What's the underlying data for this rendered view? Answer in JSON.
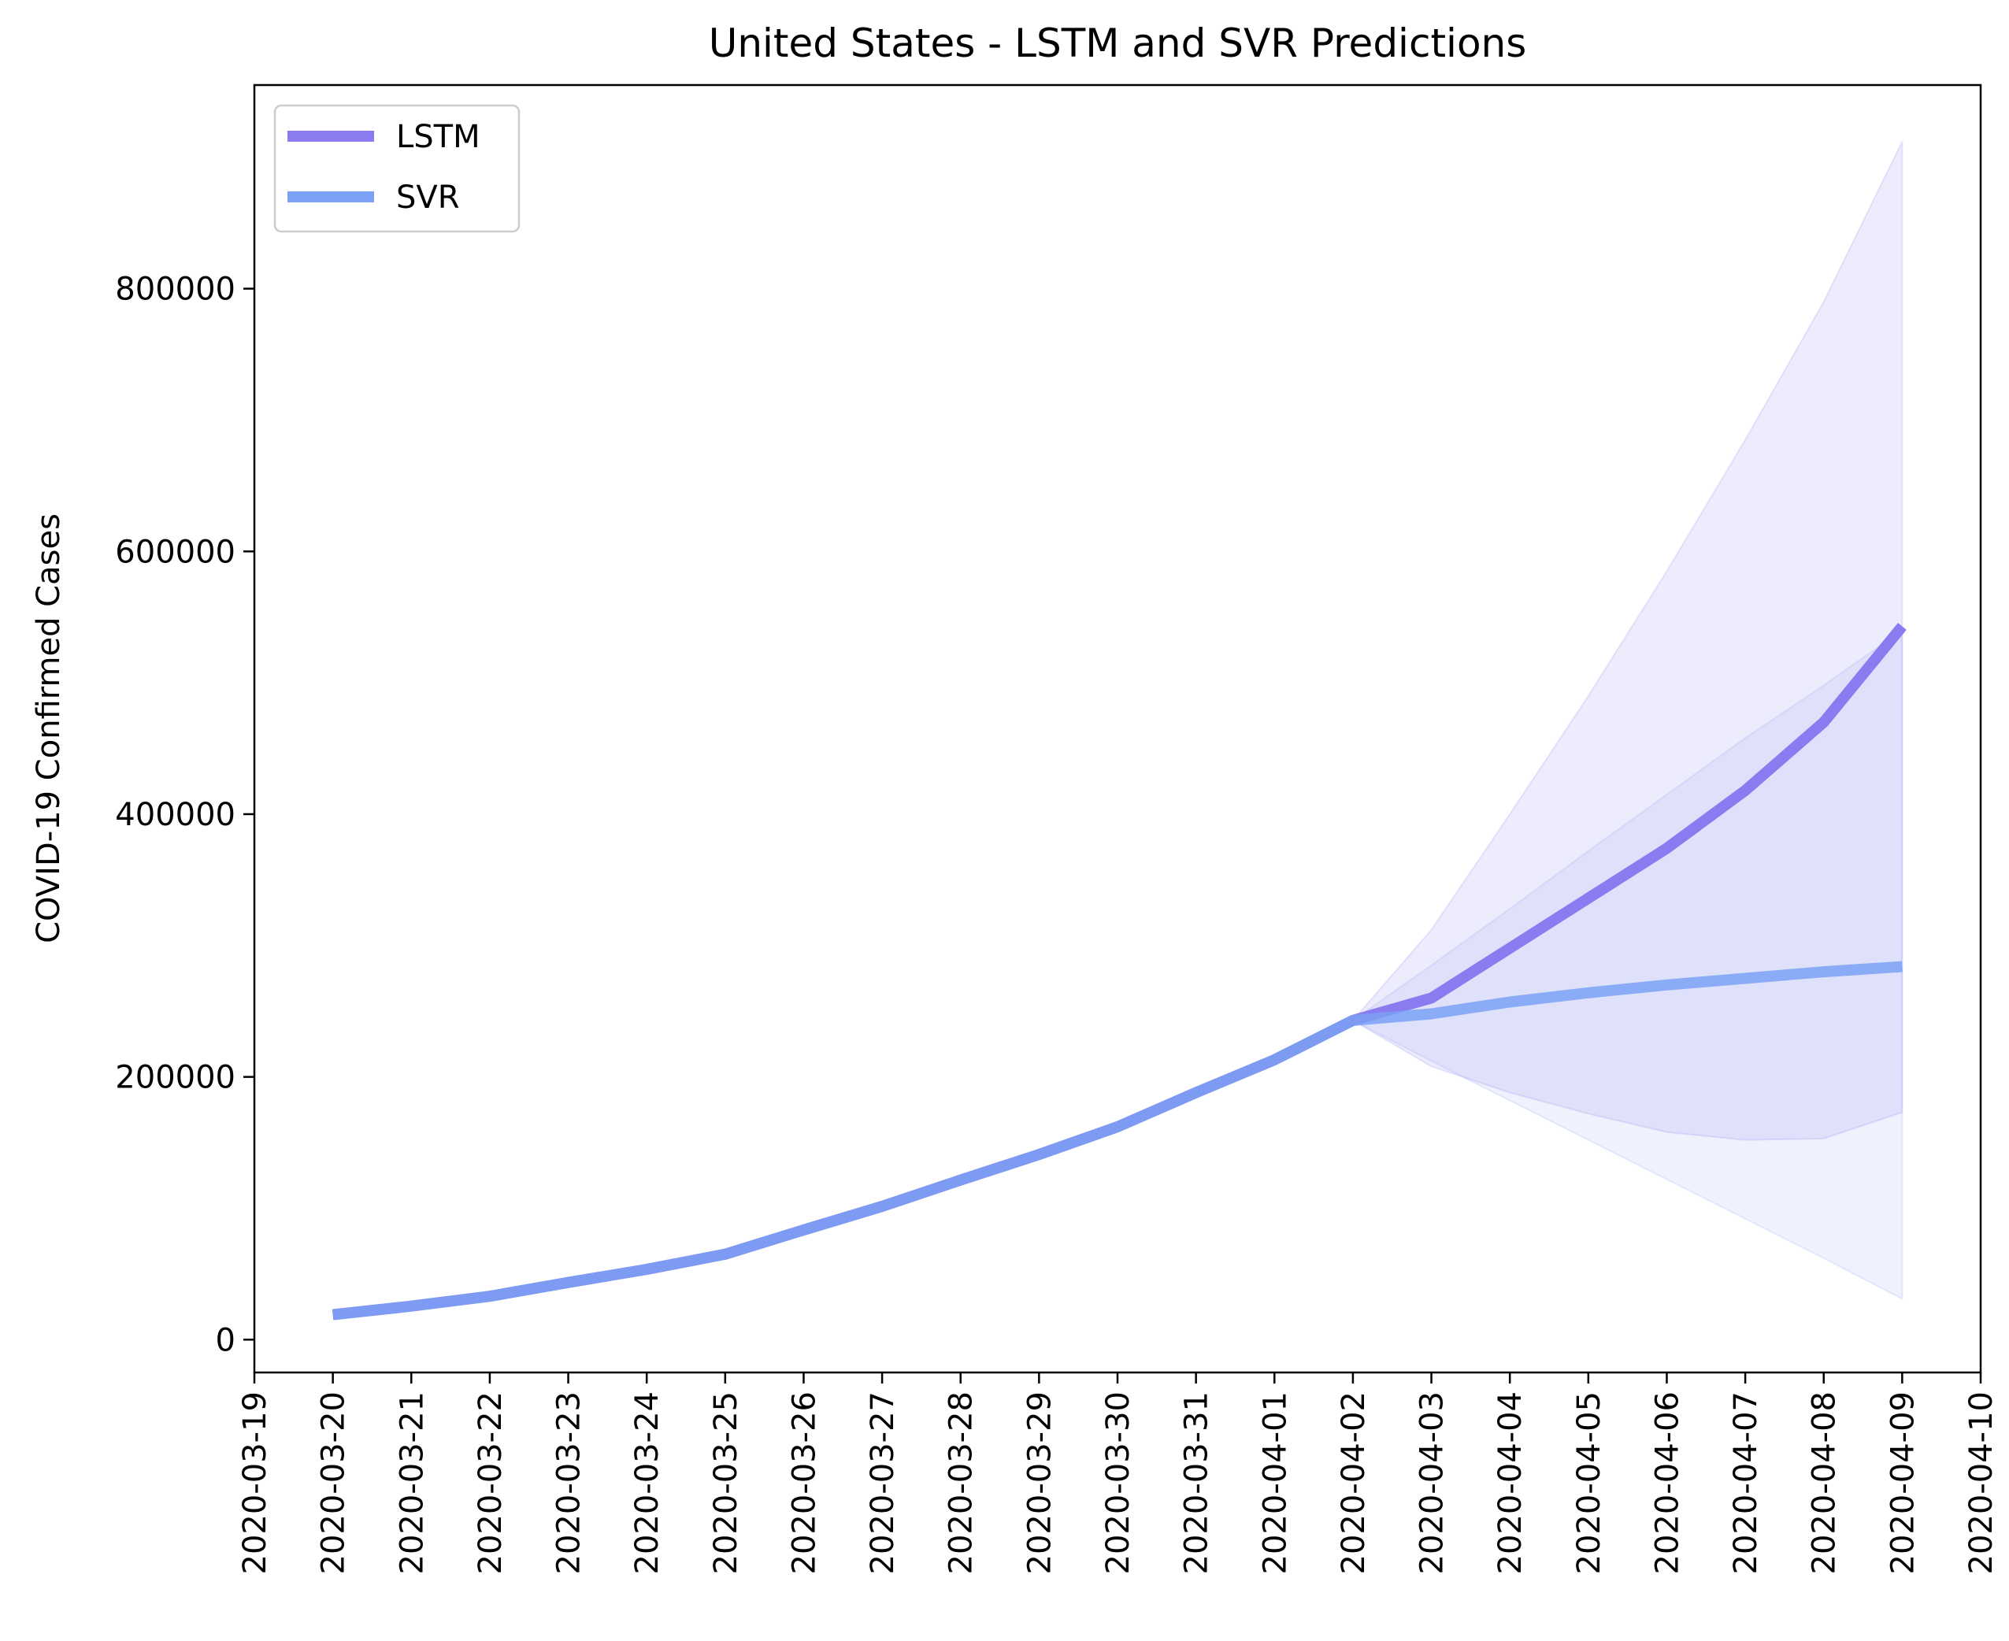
{
  "chart_data": {
    "type": "line",
    "title": "United States - LSTM and SVR Predictions",
    "xlabel": "",
    "ylabel": "COVID-19 Confirmed Cases",
    "xlim": [
      "2020-03-19",
      "2020-04-10"
    ],
    "ylim": [
      -25000,
      955000
    ],
    "x_ticks": [
      "2020-03-19",
      "2020-03-20",
      "2020-03-21",
      "2020-03-22",
      "2020-03-23",
      "2020-03-24",
      "2020-03-25",
      "2020-03-26",
      "2020-03-27",
      "2020-03-28",
      "2020-03-29",
      "2020-03-30",
      "2020-03-31",
      "2020-04-01",
      "2020-04-02",
      "2020-04-03",
      "2020-04-04",
      "2020-04-05",
      "2020-04-06",
      "2020-04-07",
      "2020-04-08",
      "2020-04-09",
      "2020-04-10"
    ],
    "y_ticks": [
      0,
      200000,
      400000,
      600000,
      800000
    ],
    "y_tick_labels": [
      "0",
      "200000",
      "400000",
      "600000",
      "800000"
    ],
    "grid": false,
    "legend_position": "top-left",
    "series": [
      {
        "name": "LSTM",
        "color": "#8a7cf0",
        "x": [
          "2020-03-20",
          "2020-03-21",
          "2020-03-22",
          "2020-03-23",
          "2020-03-24",
          "2020-03-25",
          "2020-03-26",
          "2020-03-27",
          "2020-03-28",
          "2020-03-29",
          "2020-03-30",
          "2020-03-31",
          "2020-04-01",
          "2020-04-02",
          "2020-04-03",
          "2020-04-04",
          "2020-04-05",
          "2020-04-06",
          "2020-04-07",
          "2020-04-08",
          "2020-04-09"
        ],
        "y": [
          19000,
          25500,
          33000,
          43500,
          53500,
          65000,
          83500,
          101500,
          121500,
          141000,
          162000,
          188000,
          213000,
          243000,
          260000,
          298000,
          336000,
          374000,
          418000,
          470000,
          543000
        ],
        "band_upper": [
          null,
          null,
          null,
          null,
          null,
          null,
          null,
          null,
          null,
          null,
          null,
          null,
          null,
          243000,
          312000,
          400000,
          490000,
          585000,
          685000,
          790000,
          912000
        ],
        "band_lower": [
          null,
          null,
          null,
          null,
          null,
          null,
          null,
          null,
          null,
          null,
          null,
          null,
          null,
          243000,
          208000,
          188000,
          172000,
          158000,
          152000,
          153000,
          173000
        ]
      },
      {
        "name": "SVR",
        "color": "#7ba1f5",
        "x": [
          "2020-03-20",
          "2020-03-21",
          "2020-03-22",
          "2020-03-23",
          "2020-03-24",
          "2020-03-25",
          "2020-03-26",
          "2020-03-27",
          "2020-03-28",
          "2020-03-29",
          "2020-03-30",
          "2020-03-31",
          "2020-04-01",
          "2020-04-02",
          "2020-04-03",
          "2020-04-04",
          "2020-04-05",
          "2020-04-06",
          "2020-04-07",
          "2020-04-08",
          "2020-04-09"
        ],
        "y": [
          19000,
          25500,
          33000,
          43500,
          53500,
          65000,
          83500,
          101500,
          121500,
          141000,
          162000,
          188000,
          213000,
          243000,
          248000,
          257000,
          264000,
          270000,
          275000,
          280000,
          284000
        ],
        "band_upper": [
          null,
          null,
          null,
          null,
          null,
          null,
          null,
          null,
          null,
          null,
          null,
          null,
          null,
          243000,
          285000,
          328000,
          372000,
          415000,
          458000,
          498000,
          540000
        ],
        "band_lower": [
          null,
          null,
          null,
          null,
          null,
          null,
          null,
          null,
          null,
          null,
          null,
          null,
          null,
          243000,
          212000,
          182000,
          152000,
          122000,
          92000,
          62000,
          31000
        ]
      }
    ],
    "band_colors": [
      "#6f63e8",
      "#7b8ef0"
    ],
    "merged_line_color": "#6f8cf3"
  }
}
